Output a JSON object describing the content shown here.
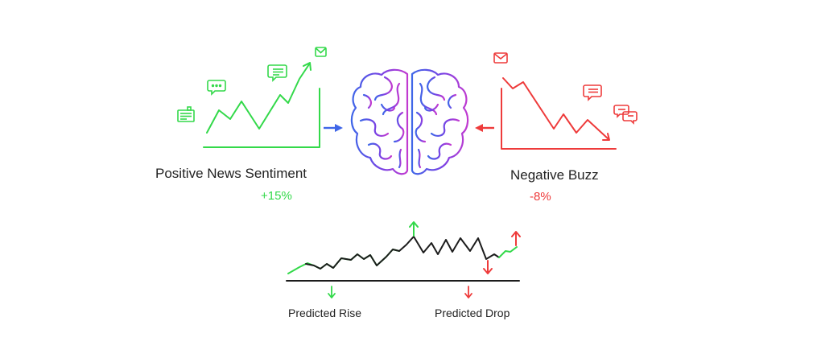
{
  "left_panel": {
    "title": "Positive News Sentiment",
    "change": "+15%",
    "color": "#33d94a",
    "icons": [
      "newspaper-icon",
      "chat-bubble-icon",
      "message-icon",
      "mail-icon"
    ]
  },
  "right_panel": {
    "title": "Negative Buzz",
    "change": "-8%",
    "color": "#ee3b3b",
    "icons": [
      "mail-icon",
      "message-icon",
      "chat-bubbles-icon"
    ]
  },
  "center": {
    "icon": "brain-icon",
    "colors": [
      "#3f66e8",
      "#8b3fe0",
      "#c13ad0"
    ]
  },
  "bottom": {
    "rise_label": "Predicted Rise",
    "drop_label": "Predicted Drop",
    "rise_color": "#33d94a",
    "drop_color": "#ee3b3b",
    "line_color": "#1c1c1c"
  }
}
